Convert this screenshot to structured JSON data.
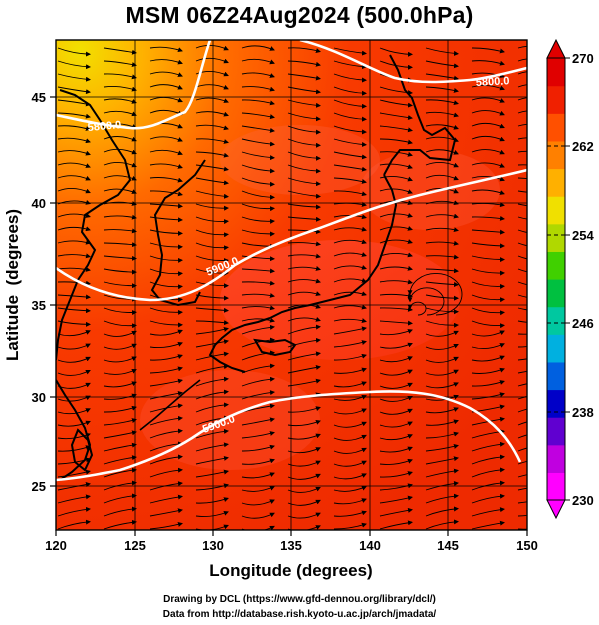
{
  "title": "MSM 06Z24Aug2024 (500.0hPa)",
  "xaxis": {
    "label": "Longitude (degrees)",
    "ticks": [
      "120",
      "125",
      "130",
      "135",
      "140",
      "145",
      "150"
    ]
  },
  "yaxis": {
    "label": "Latitude  (degrees)",
    "ticks": [
      "25",
      "30",
      "35",
      "40",
      "45"
    ]
  },
  "colorbar": {
    "ticks": [
      "270",
      "262",
      "254",
      "246",
      "238",
      "230"
    ],
    "colors": [
      "#ff00ff",
      "#c000e0",
      "#6000d0",
      "#0000c8",
      "#0060e0",
      "#00b0e0",
      "#00c8a0",
      "#00c040",
      "#40d000",
      "#b0d800",
      "#f0e000",
      "#ffb000",
      "#ff8000",
      "#ff5000",
      "#f02000",
      "#e00000"
    ]
  },
  "contours": [
    {
      "label": "5800.0"
    },
    {
      "label": "5800.0"
    },
    {
      "label": "5900.0"
    },
    {
      "label": "5900.0"
    }
  ],
  "credits": {
    "line1": "Drawing by DCL (https://www.gfd-dennou.org/library/dcl/)",
    "line2": "Data from http://database.rish.kyoto-u.ac.jp/arch/jmadata/"
  }
}
